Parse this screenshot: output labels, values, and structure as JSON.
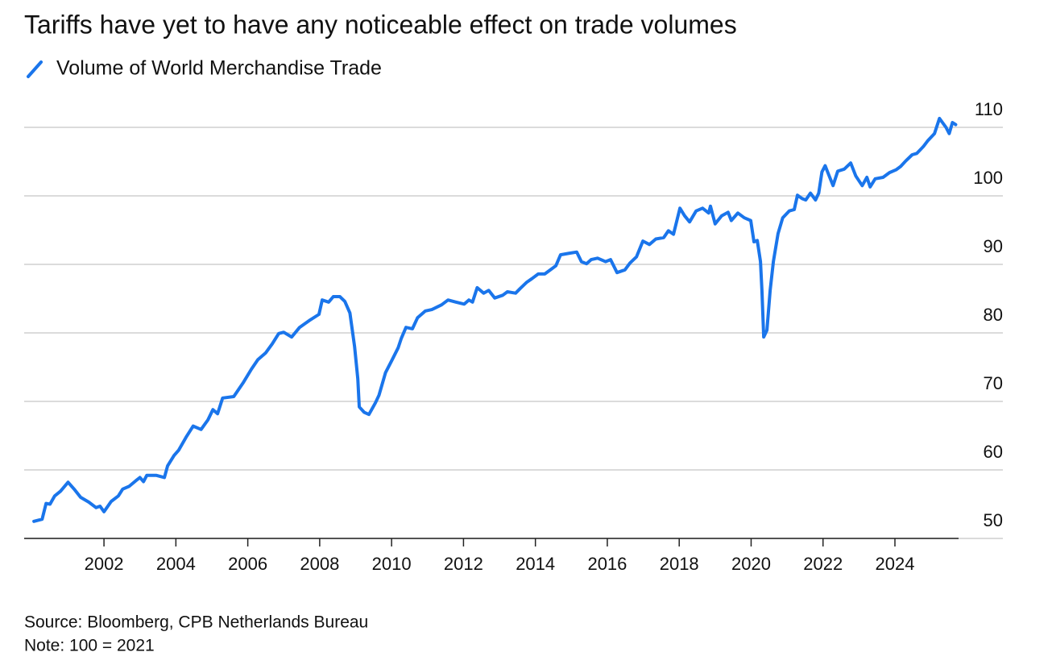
{
  "chart_data": {
    "type": "line",
    "title": "Tariffs have yet to have any noticeable effect on trade volumes",
    "source": "Source: Bloomberg, CPB Netherlands Bureau",
    "note": "Note: 100 = 2021",
    "x": [
      2000.05,
      2000.28,
      2000.39,
      2000.5,
      2000.63,
      2000.79,
      2001.0,
      2001.17,
      2001.35,
      2001.58,
      2001.78,
      2001.89,
      2002.0,
      2002.2,
      2002.4,
      2002.52,
      2002.7,
      2002.88,
      2003.0,
      2003.1,
      2003.19,
      2003.46,
      2003.68,
      2003.77,
      2003.95,
      2004.08,
      2004.3,
      2004.48,
      2004.7,
      2004.89,
      2005.03,
      2005.16,
      2005.3,
      2005.61,
      2005.88,
      2006.1,
      2006.28,
      2006.5,
      2006.68,
      2006.86,
      2007.0,
      2007.22,
      2007.44,
      2007.71,
      2007.98,
      2008.07,
      2008.25,
      2008.38,
      2008.56,
      2008.7,
      2008.84,
      2008.97,
      2009.06,
      2009.1,
      2009.24,
      2009.37,
      2009.55,
      2009.65,
      2009.83,
      2010.0,
      2010.18,
      2010.27,
      2010.4,
      2010.58,
      2010.72,
      2010.94,
      2011.12,
      2011.39,
      2011.57,
      2011.79,
      2012.02,
      2012.15,
      2012.25,
      2012.38,
      2012.56,
      2012.7,
      2012.87,
      2013.09,
      2013.22,
      2013.45,
      2013.58,
      2013.76,
      2013.9,
      2014.08,
      2014.26,
      2014.44,
      2014.57,
      2014.7,
      2014.92,
      2015.15,
      2015.28,
      2015.42,
      2015.55,
      2015.73,
      2015.95,
      2016.09,
      2016.27,
      2016.49,
      2016.63,
      2016.81,
      2016.99,
      2017.17,
      2017.35,
      2017.57,
      2017.7,
      2017.84,
      2018.02,
      2018.15,
      2018.29,
      2018.47,
      2018.65,
      2018.82,
      2018.87,
      2019.0,
      2019.18,
      2019.36,
      2019.45,
      2019.63,
      2019.81,
      2019.99,
      2020.08,
      2020.17,
      2020.26,
      2020.3,
      2020.35,
      2020.44,
      2020.53,
      2020.62,
      2020.75,
      2020.88,
      2021.06,
      2021.2,
      2021.29,
      2021.42,
      2021.52,
      2021.65,
      2021.79,
      2021.88,
      2021.97,
      2022.06,
      2022.15,
      2022.28,
      2022.41,
      2022.59,
      2022.77,
      2022.91,
      2023.09,
      2023.22,
      2023.31,
      2023.45,
      2023.67,
      2023.85,
      2024.03,
      2024.16,
      2024.3,
      2024.48,
      2024.61,
      2024.79,
      2024.92,
      2025.1,
      2025.24,
      2025.42,
      2025.51,
      2025.6,
      2025.69
    ],
    "series": [
      {
        "name": "Volume of World Merchandise Trade",
        "color": "#1a75eb",
        "values": [
          52.5,
          52.8,
          55.1,
          55,
          56.2,
          56.9,
          58.2,
          57.2,
          56,
          55.3,
          54.5,
          54.7,
          53.9,
          55.4,
          56.2,
          57.2,
          57.6,
          58.4,
          58.9,
          58.3,
          59.2,
          59.2,
          58.9,
          60.6,
          62.1,
          62.9,
          64.9,
          66.4,
          65.9,
          67.3,
          68.8,
          68.2,
          70.5,
          70.7,
          72.8,
          74.7,
          76.1,
          77.1,
          78.4,
          79.9,
          80.1,
          79.4,
          80.8,
          81.8,
          82.7,
          84.8,
          84.5,
          85.3,
          85.3,
          84.6,
          82.9,
          78,
          73.3,
          69.2,
          68.4,
          68.1,
          69.8,
          70.9,
          74.2,
          75.9,
          77.8,
          79.2,
          80.8,
          80.6,
          82.2,
          83.2,
          83.4,
          84.1,
          84.8,
          84.5,
          84.2,
          84.8,
          84.5,
          86.6,
          85.8,
          86.2,
          85.1,
          85.5,
          86,
          85.8,
          86.5,
          87.4,
          87.9,
          88.6,
          88.6,
          89.3,
          89.8,
          91.4,
          91.6,
          91.8,
          90.4,
          90.1,
          90.7,
          90.9,
          90.4,
          90.7,
          88.8,
          89.2,
          90.2,
          91.1,
          93.4,
          92.9,
          93.7,
          93.9,
          94.9,
          94.4,
          98.2,
          97.1,
          96.2,
          97.8,
          98.2,
          97.5,
          98.5,
          95.9,
          97.1,
          97.6,
          96.4,
          97.5,
          96.8,
          96.4,
          93.3,
          93.5,
          90.4,
          86.2,
          79.4,
          80.4,
          86.2,
          90.4,
          94.5,
          96.8,
          97.8,
          98,
          100.1,
          99.6,
          99.4,
          100.4,
          99.4,
          100.4,
          103.5,
          104.4,
          103.2,
          101.5,
          103.6,
          103.9,
          104.8,
          102.9,
          101.5,
          102.7,
          101.3,
          102.5,
          102.7,
          103.4,
          103.8,
          104.3,
          105.1,
          106,
          106.2,
          107.2,
          108.1,
          109.1,
          111.3,
          110,
          109.1,
          110.7,
          110.4
        ]
      }
    ],
    "xlim": [
      1999.78,
      2025.77
    ],
    "xticks": [
      2002,
      2004,
      2006,
      2008,
      2010,
      2012,
      2014,
      2016,
      2018,
      2020,
      2022,
      2024
    ],
    "ylim": [
      50,
      110
    ],
    "yticks": [
      50,
      60,
      70,
      80,
      90,
      100,
      110
    ],
    "grid": true
  }
}
